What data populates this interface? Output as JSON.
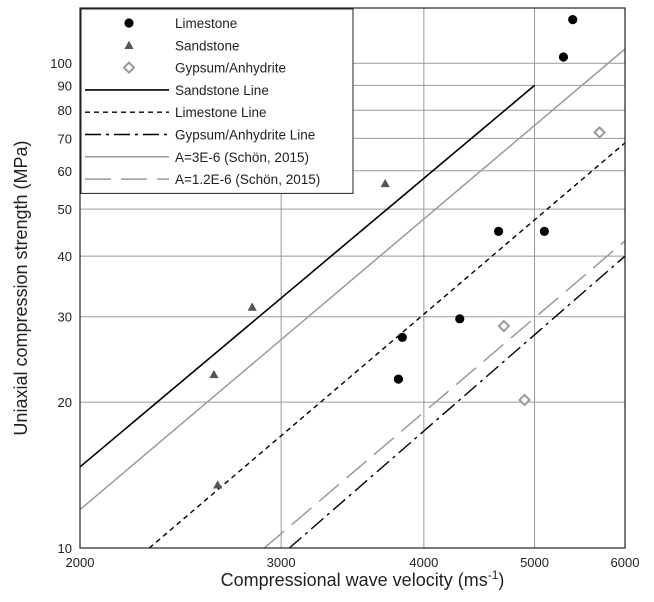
{
  "chart_data": {
    "type": "scatter",
    "xlabel": "Compressional wave velocity (ms",
    "xlabel_sup": "-1",
    "xlabel_end": ")",
    "ylabel": "Uniaxial compression strength (MPa)",
    "x_scale": "log",
    "y_scale": "log",
    "xlim": [
      2000,
      6000
    ],
    "ylim": [
      10,
      130
    ],
    "x_ticks": [
      2000,
      3000,
      4000,
      5000,
      6000
    ],
    "y_ticks": [
      10,
      20,
      30,
      40,
      50,
      60,
      70,
      80,
      90,
      100
    ],
    "grid": true,
    "legend_position": "top-left",
    "colors": {
      "limestone": "#000000",
      "sandstone": "#555555",
      "gypsum": "#999999",
      "sandstone_line": "#000000",
      "limestone_line": "#000000",
      "gypsum_line": "#000000",
      "schon_3e6": "#9a9a9a",
      "schon_12e6": "#9a9a9a",
      "grid": "#9a9a9a"
    },
    "series": [
      {
        "name": "Limestone",
        "kind": "points",
        "marker": "circle",
        "points": [
          [
            3800,
            22.3
          ],
          [
            3830,
            27.2
          ],
          [
            4300,
            29.7
          ],
          [
            4650,
            45
          ],
          [
            5100,
            45
          ],
          [
            5300,
            103
          ],
          [
            5400,
            123
          ]
        ]
      },
      {
        "name": "Sandstone",
        "kind": "points",
        "marker": "triangle",
        "points": [
          [
            2640,
            13.5
          ],
          [
            2620,
            22.8
          ],
          [
            2830,
            31.4
          ],
          [
            3700,
            56.5
          ]
        ]
      },
      {
        "name": "Gypsum/Anhydrite",
        "kind": "points",
        "marker": "diamond",
        "points": [
          [
            4700,
            28.7
          ],
          [
            4900,
            20.2
          ],
          [
            5700,
            72
          ]
        ]
      },
      {
        "name": "Sandstone Line",
        "kind": "line",
        "style": "solid",
        "points": [
          [
            2000,
            14.7
          ],
          [
            5000,
            90
          ]
        ]
      },
      {
        "name": "Limestone Line",
        "kind": "line",
        "style": "dashed",
        "points": [
          [
            2300,
            10
          ],
          [
            6000,
            68.5
          ]
        ]
      },
      {
        "name": "Gypsum/Anhydrite Line",
        "kind": "line",
        "style": "dashdot",
        "points": [
          [
            3050,
            10
          ],
          [
            6000,
            40
          ]
        ]
      },
      {
        "name": "A=3E-6 (Schön, 2015)",
        "kind": "line",
        "style": "solid-gray",
        "points": [
          [
            2000,
            12
          ],
          [
            6000,
            107
          ]
        ]
      },
      {
        "name": "A=1.2E-6 (Schön, 2015)",
        "kind": "line",
        "style": "longdash-gray",
        "points": [
          [
            2900,
            10
          ],
          [
            6000,
            43
          ]
        ]
      }
    ]
  }
}
